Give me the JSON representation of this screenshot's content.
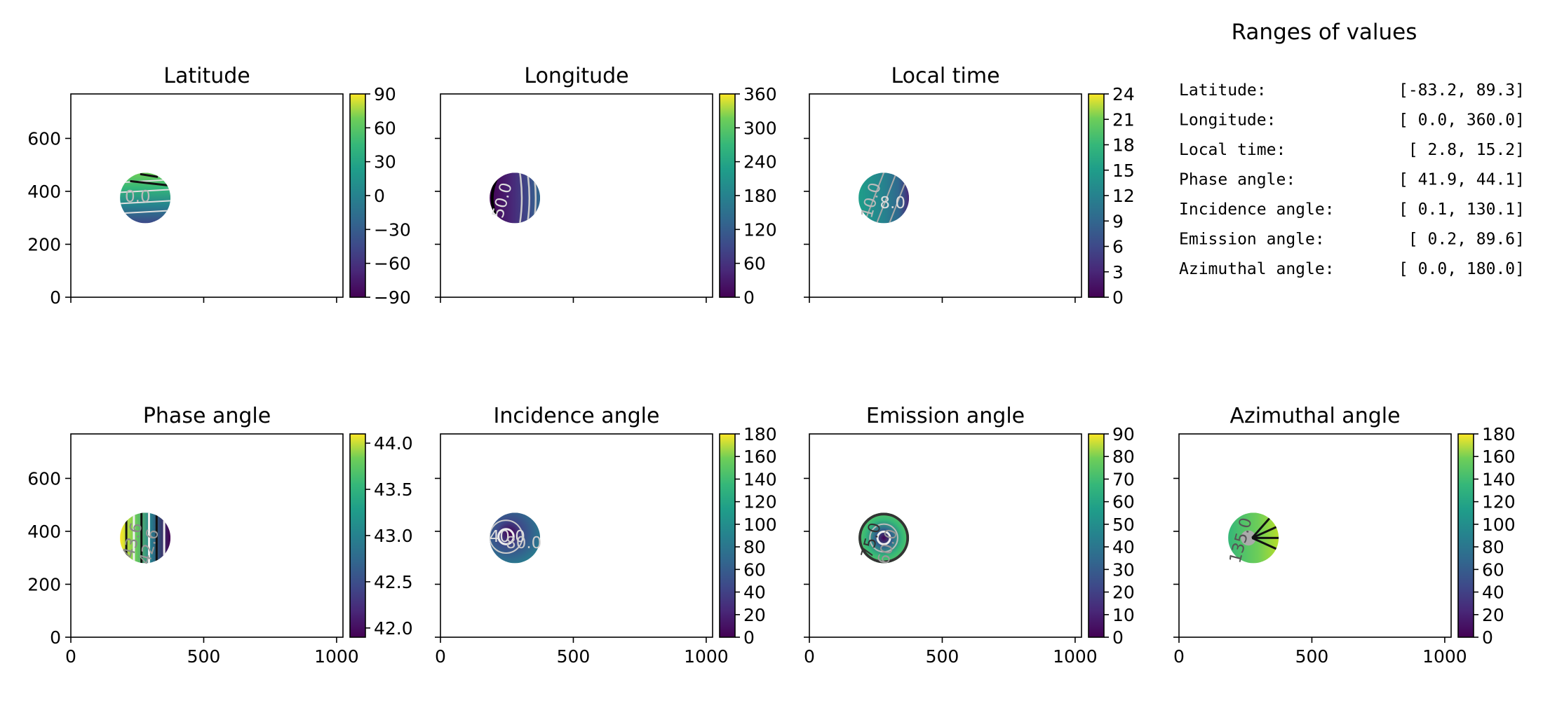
{
  "figure": {
    "panels": [
      {
        "title": "Latitude",
        "colorbar": {
          "min": -90,
          "max": 90,
          "ticks": [
            "90",
            "60",
            "30",
            "0",
            "−30",
            "−60",
            "−90"
          ],
          "tick_values": [
            90,
            60,
            30,
            0,
            -30,
            -60,
            -90
          ]
        },
        "show_y_ticklabels": true,
        "show_x_ticklabels": false,
        "contour_labels": [
          {
            "text": "0.0",
            "color": "#bbbbbb"
          }
        ]
      },
      {
        "title": "Longitude",
        "colorbar": {
          "min": 0,
          "max": 360,
          "ticks": [
            "360",
            "300",
            "240",
            "180",
            "120",
            "60",
            "0"
          ],
          "tick_values": [
            360,
            300,
            240,
            180,
            120,
            60,
            0
          ]
        },
        "show_y_ticklabels": false,
        "show_x_ticklabels": false,
        "contour_labels": [
          {
            "text": "50.0",
            "color": "#dddddd"
          }
        ]
      },
      {
        "title": "Local time",
        "colorbar": {
          "min": 0,
          "max": 24,
          "ticks": [
            "24",
            "21",
            "18",
            "15",
            "12",
            "9",
            "6",
            "3",
            "0"
          ],
          "tick_values": [
            24,
            21,
            18,
            15,
            12,
            9,
            6,
            3,
            0
          ]
        },
        "show_y_ticklabels": false,
        "show_x_ticklabels": false,
        "contour_labels": [
          {
            "text": "10.0",
            "color": "#bbbbbb"
          },
          {
            "text": "8.0",
            "color": "#dddddd"
          }
        ]
      },
      {
        "title": "Phase angle",
        "colorbar": {
          "min": 41.9,
          "max": 44.1,
          "ticks": [
            "44.0",
            "43.5",
            "43.0",
            "42.5",
            "42.0"
          ],
          "tick_values": [
            44.0,
            43.5,
            43.0,
            42.5,
            42.0
          ]
        },
        "show_y_ticklabels": true,
        "show_x_ticklabels": true,
        "contour_labels": [
          {
            "text": "43.6",
            "color": "#888888"
          },
          {
            "text": "42.6",
            "color": "#999999"
          }
        ]
      },
      {
        "title": "Incidence angle",
        "colorbar": {
          "min": 0,
          "max": 180,
          "ticks": [
            "180",
            "160",
            "140",
            "120",
            "100",
            "80",
            "60",
            "40",
            "20",
            "0"
          ],
          "tick_values": [
            180,
            160,
            140,
            120,
            100,
            80,
            60,
            40,
            20,
            0
          ]
        },
        "show_y_ticklabels": false,
        "show_x_ticklabels": true,
        "contour_labels": [
          {
            "text": "40.0",
            "color": "#dddddd"
          },
          {
            "text": "80.0",
            "color": "#cccccc"
          }
        ]
      },
      {
        "title": "Emission angle",
        "colorbar": {
          "min": 0,
          "max": 90,
          "ticks": [
            "90",
            "80",
            "70",
            "60",
            "50",
            "40",
            "30",
            "20",
            "10",
            "0"
          ],
          "tick_values": [
            90,
            80,
            70,
            60,
            50,
            40,
            30,
            20,
            10,
            0
          ]
        },
        "show_y_ticklabels": false,
        "show_x_ticklabels": true,
        "contour_labels": [
          {
            "text": "75.0",
            "color": "#333333"
          },
          {
            "text": "60.0",
            "color": "#999999"
          }
        ]
      },
      {
        "title": "Azimuthal angle",
        "colorbar": {
          "min": 0,
          "max": 180,
          "ticks": [
            "180",
            "160",
            "140",
            "120",
            "100",
            "80",
            "60",
            "40",
            "20",
            "0"
          ],
          "tick_values": [
            180,
            160,
            140,
            120,
            100,
            80,
            60,
            40,
            20,
            0
          ]
        },
        "show_y_ticklabels": false,
        "show_x_ticklabels": true,
        "contour_labels": [
          {
            "text": "135.0",
            "color": "#555555"
          }
        ]
      }
    ],
    "ranges": {
      "title": "Ranges of values",
      "rows": [
        {
          "label": "Latitude:",
          "value": "[-83.2,  89.3]"
        },
        {
          "label": "Longitude:",
          "value": "[  0.0, 360.0]"
        },
        {
          "label": "Local time:",
          "value": "[  2.8,  15.2]"
        },
        {
          "label": "Phase angle:",
          "value": "[ 41.9,  44.1]"
        },
        {
          "label": "Incidence angle:",
          "value": "[  0.1, 130.1]"
        },
        {
          "label": "Emission angle:",
          "value": "[  0.2,  89.6]"
        },
        {
          "label": "Azimuthal angle:",
          "value": "[  0.0, 180.0]"
        }
      ]
    }
  },
  "chart_data": {
    "type": "heatmap",
    "x_axis": {
      "range": [
        0,
        1024
      ],
      "ticks": [
        "0",
        "500",
        "1000"
      ],
      "tick_values": [
        0,
        500,
        1000
      ]
    },
    "y_axis": {
      "range": [
        0,
        768
      ],
      "ticks": [
        "0",
        "200",
        "400",
        "600"
      ],
      "tick_values": [
        0,
        200,
        400,
        600
      ]
    },
    "disc": {
      "center_x": 280,
      "center_y": 375,
      "radius": 95
    },
    "colormap": "viridis"
  }
}
